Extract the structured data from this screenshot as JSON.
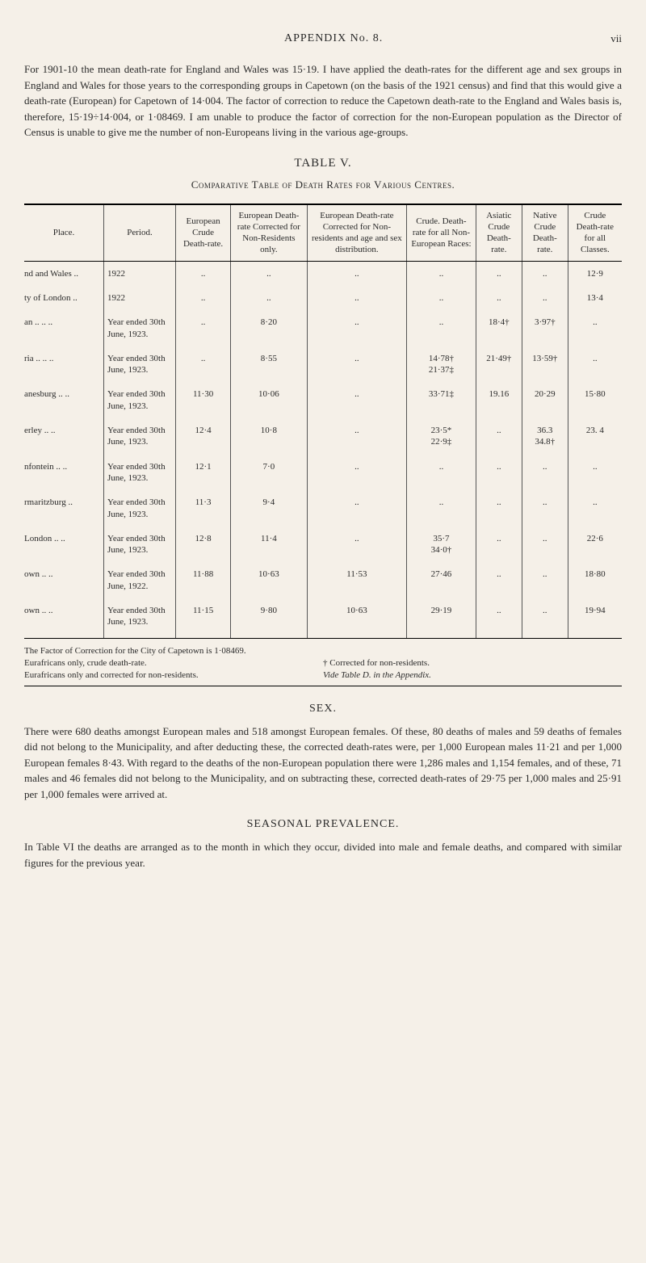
{
  "header": {
    "title": "APPENDIX No. 8.",
    "page": "vii"
  },
  "intro_paragraph": "For 1901-10 the mean death-rate for England and Wales was 15·19. I have applied the death-rates for the different age and sex groups in England and Wales for those years to the corresponding groups in Capetown (on the basis of the 1921 census) and find that this would give a death-rate (European) for Capetown of 14·004. The factor of correction to reduce the Capetown death-rate to the England and Wales basis is, therefore, 15·19÷14·004, or 1·08469. I am unable to produce the factor of correction for the non-European population as the Director of Census is unable to give me the number of non-Europeans living in the various age-groups.",
  "table": {
    "number": "TABLE V.",
    "caption": "Comparative Table of Death Rates for Various Centres.",
    "columns": [
      "Place.",
      "Period.",
      "European Crude Death-rate.",
      "European Death-rate Corrected for Non-Residents only.",
      "European Death-rate Corrected for Non-residents and age and sex distribution.",
      "Crude. Death-rate for all Non-European Races:",
      "Asiatic Crude Death-rate.",
      "Native Crude Death-rate.",
      "Crude Death-rate for all Classes."
    ],
    "rows": [
      {
        "place": "nd and Wales ..",
        "period": "1922",
        "c3": "..",
        "c4": "..",
        "c5": "..",
        "c6": "..",
        "c7": "..",
        "c8": "..",
        "c9": "12·9"
      },
      {
        "place": "ty of London   ..",
        "period": "1922",
        "c3": "..",
        "c4": "..",
        "c5": "..",
        "c6": "..",
        "c7": "..",
        "c8": "..",
        "c9": "13·4"
      },
      {
        "place": "an ..    ..    ..",
        "period": "Year ended 30th June, 1923.",
        "c3": "..",
        "c4": "8·20",
        "c5": "..",
        "c6": "..",
        "c7": "18·4†",
        "c8": "3·97†",
        "c9": ".."
      },
      {
        "place": "ria ..    ..    ..",
        "period": "Year ended 30th June, 1923.",
        "c3": "..",
        "c4": "8·55",
        "c5": "..",
        "c6": "14·78†\n21·37‡",
        "c7": "21·49†",
        "c8": "13·59†",
        "c9": ".."
      },
      {
        "place": "anesburg ..    ..",
        "period": "Year ended 30th June, 1923.",
        "c3": "11·30",
        "c4": "10·06",
        "c5": "..",
        "c6": "33·71‡",
        "c7": "19.16",
        "c8": "20·29",
        "c9": "15·80"
      },
      {
        "place": "erley    ..    ..",
        "period": "Year ended 30th June, 1923.",
        "c3": "12·4",
        "c4": "10·8",
        "c5": "..",
        "c6": "23·5*\n22·9‡",
        "c7": "..",
        "c8": "36.3\n34.8†",
        "c9": "23. 4"
      },
      {
        "place": "nfontein ..    ..",
        "period": "Year ended 30th June, 1923.",
        "c3": "12·1",
        "c4": "7·0",
        "c5": "..",
        "c6": "..",
        "c7": "..",
        "c8": "..",
        "c9": ".."
      },
      {
        "place": "rmaritzburg    ..",
        "period": "Year ended 30th June, 1923.",
        "c3": "11·3",
        "c4": "9·4",
        "c5": "..",
        "c6": "..",
        "c7": "..",
        "c8": "..",
        "c9": ".."
      },
      {
        "place": "London ..    ..",
        "period": "Year ended 30th June, 1923.",
        "c3": "12·8",
        "c4": "11·4",
        "c5": "..",
        "c6": "35·7\n34·0†",
        "c7": "..",
        "c8": "..",
        "c9": "22·6"
      },
      {
        "place": "own    ..    ..",
        "period": "Year ended 30th June, 1922.",
        "c3": "11·88",
        "c4": "10·63",
        "c5": "11·53",
        "c6": "27·46",
        "c7": "..",
        "c8": "..",
        "c9": "18·80"
      },
      {
        "place": "own    ..    ..",
        "period": "Year ended 30th June, 1923.",
        "c3": "11·15",
        "c4": "9·80",
        "c5": "10·63",
        "c6": "29·19",
        "c7": "..",
        "c8": "..",
        "c9": "19·94"
      }
    ],
    "footnotes": {
      "line1": "The Factor of Correction for the City of Capetown is 1·08469.",
      "line2_left": "Eurafricans only, crude death-rate.",
      "line2_right": "† Corrected for non-residents.",
      "line3_left": "Eurafricans only and corrected for non-residents.",
      "line3_right": "Vide Table D. in the Appendix."
    }
  },
  "sex_section": {
    "heading": "SEX.",
    "paragraph": "There were 680 deaths amongst European males and 518 amongst European females. Of these, 80 deaths of males and 59 deaths of females did not belong to the Municipality, and after deducting these, the corrected death-rates were, per 1,000 European males 11·21 and per 1,000 European females 8·43. With regard to the deaths of the non-European population there were 1,286 males and 1,154 females, and of these, 71 males and 46 females did not belong to the Municipality, and on subtracting these, corrected death-rates of 29·75 per 1,000 males and 25·91 per 1,000 females were arrived at."
  },
  "seasonal_section": {
    "heading": "SEASONAL PREVALENCE.",
    "paragraph": "In Table VI the deaths are arranged as to the month in which they occur, divided into male and female deaths, and compared with similar figures for the previous year."
  }
}
